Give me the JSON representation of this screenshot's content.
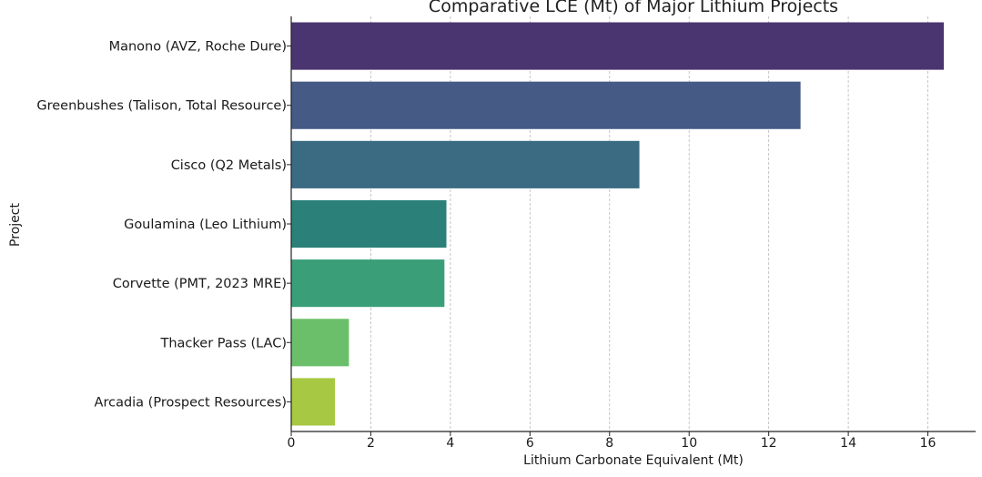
{
  "chart_data": {
    "type": "bar",
    "orientation": "horizontal",
    "title": "Comparative LCE (Mt) of Major Lithium Projects",
    "xlabel": "Lithium Carbonate Equivalent (Mt)",
    "ylabel": "Project",
    "xlim": [
      0,
      17.2
    ],
    "xticks": [
      0,
      2,
      4,
      6,
      8,
      10,
      12,
      14,
      16
    ],
    "grid": "x-dashed",
    "categories": [
      "Manono (AVZ, Roche Dure)",
      "Greenbushes (Talison, Total Resource)",
      "Cisco (Q2 Metals)",
      "Goulamina (Leo Lithium)",
      "Corvette (PMT, 2023 MRE)",
      "Thacker Pass (LAC)",
      "Arcadia (Prospect Resources)"
    ],
    "values": [
      16.4,
      12.8,
      8.75,
      3.9,
      3.85,
      1.45,
      1.1
    ],
    "colors": [
      "#4a3570",
      "#465a86",
      "#3a6b82",
      "#2b8179",
      "#3a9f78",
      "#6cbf6a",
      "#a6c842"
    ]
  }
}
